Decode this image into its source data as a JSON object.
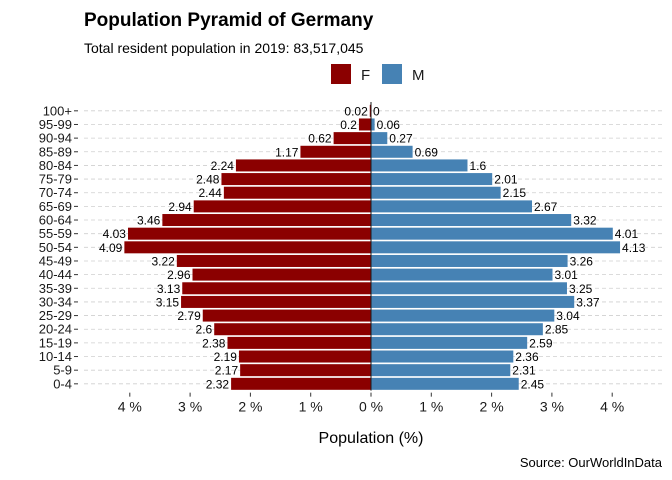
{
  "chart_data": {
    "type": "bar",
    "orientation": "horizontal-pyramid",
    "title": "Population Pyramid of Germany",
    "subtitle": "Total resident population in 2019: 83,517,045",
    "xlabel": "Population (%)",
    "ylabel": "",
    "caption": "Source: OurWorldInData",
    "x_ticks": [
      "4 %",
      "3 %",
      "2 %",
      "1 %",
      "0 %",
      "1 %",
      "2 %",
      "3 %",
      "4 %"
    ],
    "x_tick_values": [
      -4,
      -3,
      -2,
      -1,
      0,
      1,
      2,
      3,
      4
    ],
    "xlim": [
      -4.3,
      4.5
    ],
    "grid": "horizontal dashed",
    "legend_position": "top",
    "categories": [
      "0-4",
      "5-9",
      "10-14",
      "15-19",
      "20-24",
      "25-29",
      "30-34",
      "35-39",
      "40-44",
      "45-49",
      "50-54",
      "55-59",
      "60-64",
      "65-69",
      "70-74",
      "75-79",
      "80-84",
      "85-89",
      "90-94",
      "95-99",
      "100+"
    ],
    "series": [
      {
        "name": "F",
        "color": "#8b0000",
        "side": "left",
        "values": [
          2.32,
          2.17,
          2.19,
          2.38,
          2.6,
          2.79,
          3.15,
          3.13,
          2.96,
          3.22,
          4.09,
          4.03,
          3.46,
          2.94,
          2.44,
          2.48,
          2.24,
          1.17,
          0.62,
          0.2,
          0.02
        ],
        "labels": [
          "2.32",
          "2.17",
          "2.19",
          "2.38",
          "2.6",
          "2.79",
          "3.15",
          "3.13",
          "2.96",
          "3.22",
          "4.09",
          "4.03",
          "3.46",
          "2.94",
          "2.44",
          "2.48",
          "2.24",
          "1.17",
          "0.62",
          "0.2",
          "0.02"
        ]
      },
      {
        "name": "M",
        "color": "#4682b4",
        "side": "right",
        "values": [
          2.45,
          2.31,
          2.36,
          2.59,
          2.85,
          3.04,
          3.37,
          3.25,
          3.01,
          3.26,
          4.13,
          4.01,
          3.32,
          2.67,
          2.15,
          2.01,
          1.6,
          0.69,
          0.27,
          0.06,
          0
        ],
        "labels": [
          "2.45",
          "2.31",
          "2.36",
          "2.59",
          "2.85",
          "3.04",
          "3.37",
          "3.25",
          "3.01",
          "3.26",
          "4.13",
          "4.01",
          "3.32",
          "2.67",
          "2.15",
          "2.01",
          "1.6",
          "0.69",
          "0.27",
          "0.06",
          "0"
        ]
      }
    ]
  }
}
